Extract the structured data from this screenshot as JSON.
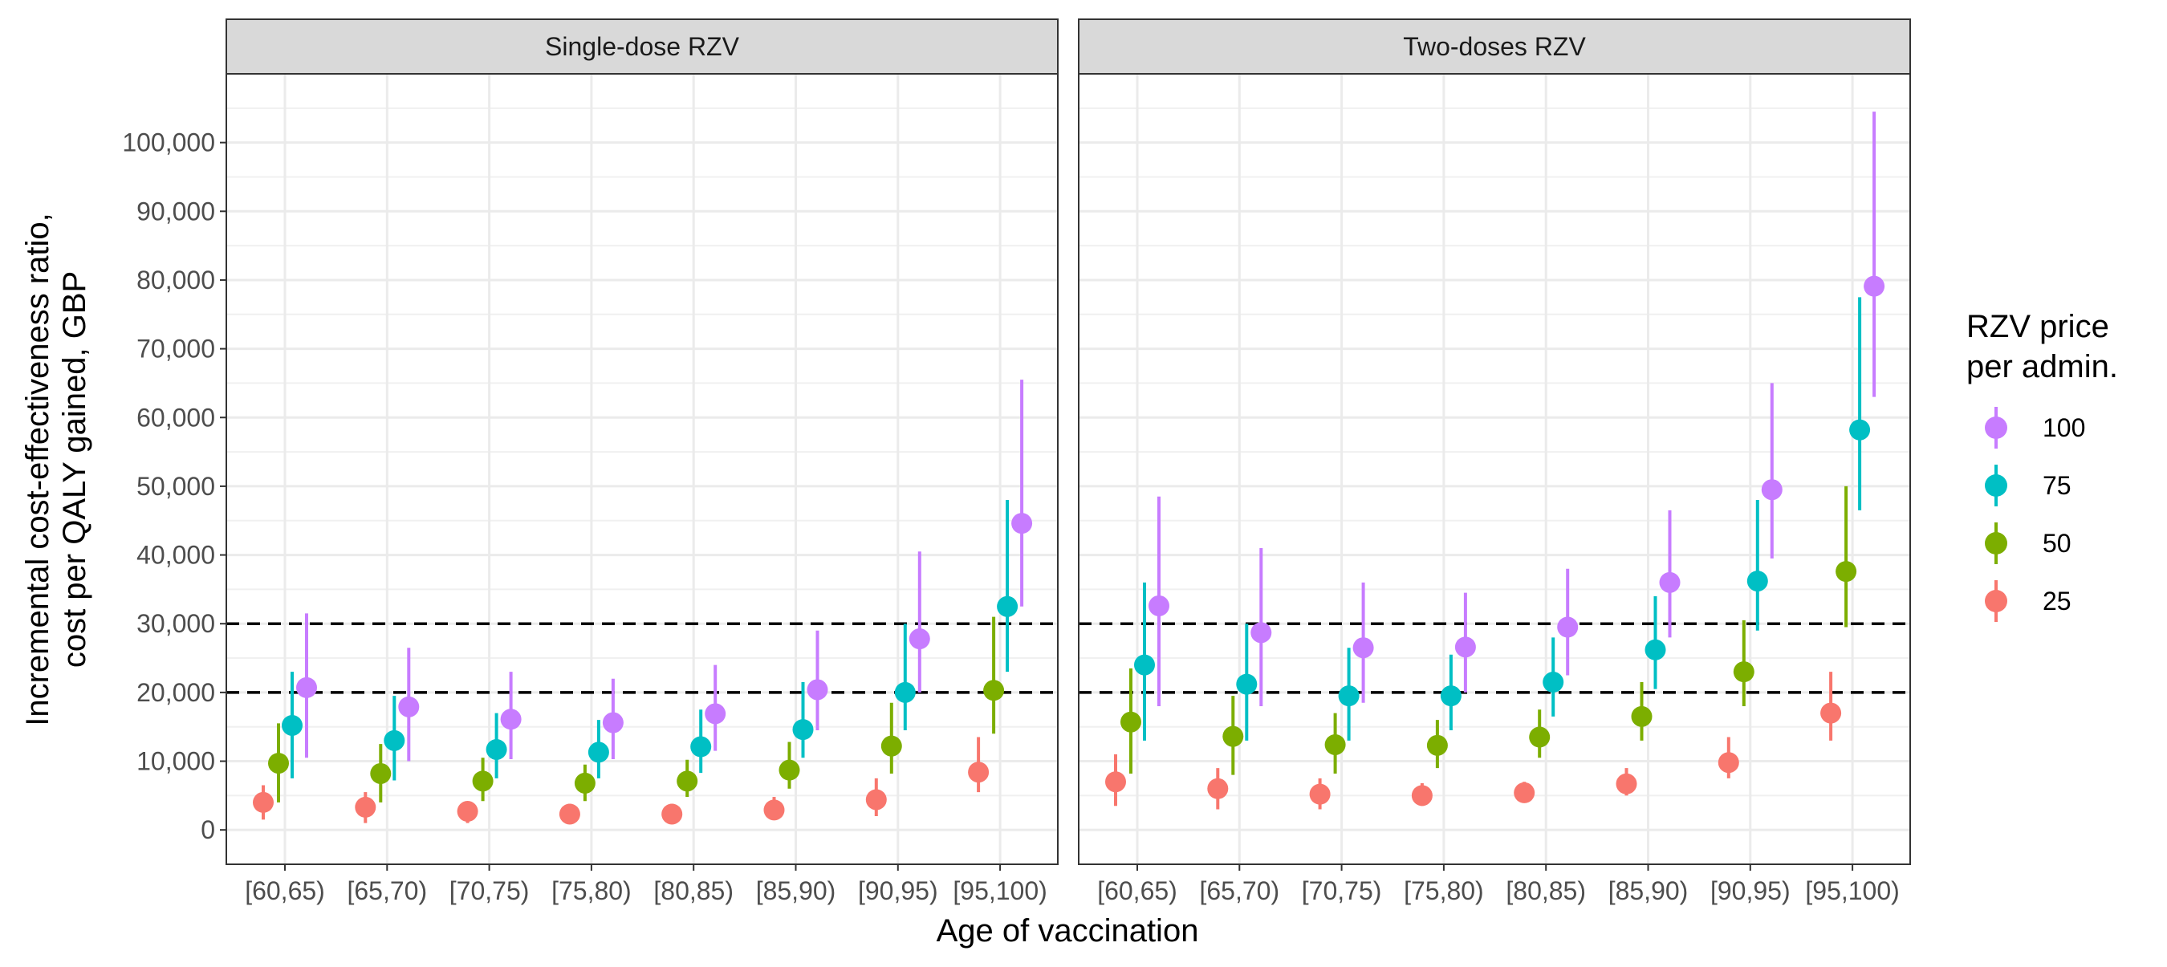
{
  "chart_data": {
    "type": "scatter",
    "xlabel": "Age of vaccination",
    "ylabel_lines": [
      "Incremental cost-effectiveness ratio,",
      "cost per QALY gained, GBP"
    ],
    "categories": [
      "[60,65)",
      "[65,70)",
      "[70,75)",
      "[75,80)",
      "[80,85)",
      "[85,90)",
      "[90,95)",
      "[95,100)"
    ],
    "ylim": [
      -5000,
      110000
    ],
    "y_ticks": [
      0,
      10000,
      20000,
      30000,
      40000,
      50000,
      60000,
      70000,
      80000,
      90000,
      100000
    ],
    "y_tick_labels": [
      "0",
      "10,000",
      "20,000",
      "30,000",
      "40,000",
      "50,000",
      "60,000",
      "70,000",
      "80,000",
      "90,000",
      "100,000"
    ],
    "reference_lines": [
      20000,
      30000
    ],
    "grid": true,
    "legend": {
      "title_lines": [
        "RZV price",
        "per admin."
      ],
      "position": "right",
      "entries": [
        {
          "label": "100",
          "color": "#C77CFF"
        },
        {
          "label": "75",
          "color": "#00BFC4"
        },
        {
          "label": "50",
          "color": "#7CAE00"
        },
        {
          "label": "25",
          "color": "#F8766D"
        }
      ]
    },
    "series_order": [
      "25",
      "50",
      "75",
      "100"
    ],
    "colors": {
      "25": "#F8766D",
      "50": "#7CAE00",
      "75": "#00BFC4",
      "100": "#C77CFF"
    },
    "panels": [
      {
        "title": "Single-dose RZV",
        "series": [
          {
            "name": "25",
            "values": [
              4000,
              3300,
              2700,
              2300,
              2300,
              2900,
              4400,
              8400
            ],
            "lower": [
              1500,
              1000,
              1000,
              1000,
              1000,
              1500,
              2000,
              5500
            ],
            "upper": [
              6500,
              5500,
              4000,
              3800,
              3800,
              4800,
              7500,
              13500
            ]
          },
          {
            "name": "50",
            "values": [
              9700,
              8200,
              7100,
              6800,
              7100,
              8700,
              12200,
              20300
            ],
            "lower": [
              4000,
              4000,
              4200,
              4200,
              4800,
              6000,
              8200,
              14000
            ],
            "upper": [
              15500,
              12500,
              10500,
              9500,
              10200,
              12800,
              18500,
              31000
            ]
          },
          {
            "name": "75",
            "values": [
              15200,
              13000,
              11700,
              11300,
              12100,
              14600,
              20000,
              32500
            ],
            "lower": [
              7500,
              7200,
              7500,
              7500,
              8300,
              10500,
              14500,
              23000
            ],
            "upper": [
              23000,
              19500,
              17000,
              16000,
              17500,
              21500,
              30000,
              48000
            ]
          },
          {
            "name": "100",
            "values": [
              20700,
              17900,
              16100,
              15600,
              16900,
              20400,
              27800,
              44600
            ],
            "lower": [
              10500,
              10000,
              10300,
              10300,
              11500,
              14500,
              20000,
              32500
            ],
            "upper": [
              31500,
              26500,
              23000,
              22000,
              24000,
              29000,
              40500,
              65500
            ]
          }
        ]
      },
      {
        "title": "Two-doses RZV",
        "series": [
          {
            "name": "25",
            "values": [
              7000,
              6000,
              5200,
              5000,
              5400,
              6700,
              9800,
              17000
            ],
            "lower": [
              3500,
              3000,
              3000,
              3500,
              4000,
              5000,
              7500,
              13000
            ],
            "upper": [
              11000,
              9000,
              7500,
              6800,
              7000,
              9000,
              13500,
              23000
            ]
          },
          {
            "name": "50",
            "values": [
              15700,
              13600,
              12400,
              12300,
              13500,
              16500,
              23000,
              37600
            ],
            "lower": [
              8200,
              8000,
              8200,
              9000,
              10500,
              13000,
              18000,
              29500
            ],
            "upper": [
              23500,
              19500,
              17000,
              16000,
              17500,
              21500,
              30500,
              50000
            ]
          },
          {
            "name": "75",
            "values": [
              24000,
              21200,
              19500,
              19500,
              21500,
              26200,
              36200,
              58200
            ],
            "lower": [
              13000,
              13000,
              13000,
              14500,
              16500,
              20500,
              29000,
              46500
            ],
            "upper": [
              36000,
              30000,
              26500,
              25500,
              28000,
              34000,
              48000,
              77500
            ]
          },
          {
            "name": "100",
            "values": [
              32600,
              28700,
              26500,
              26600,
              29500,
              36000,
              49500,
              79100
            ],
            "lower": [
              18000,
              18000,
              18500,
              20000,
              22500,
              28000,
              39500,
              63000
            ],
            "upper": [
              48500,
              41000,
              36000,
              34500,
              38000,
              46500,
              65000,
              104500
            ]
          }
        ]
      }
    ]
  }
}
